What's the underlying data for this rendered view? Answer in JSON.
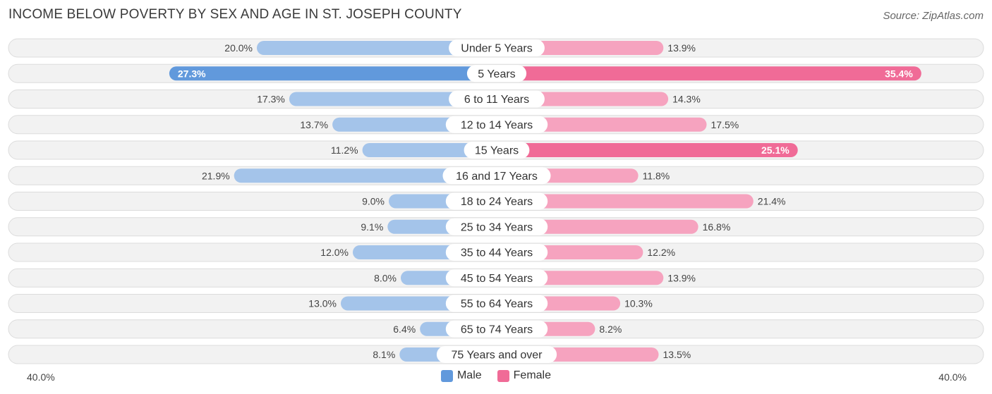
{
  "title": "INCOME BELOW POVERTY BY SEX AND AGE IN ST. JOSEPH COUNTY",
  "source": "Source: ZipAtlas.com",
  "colors": {
    "male_dark": "#6199dc",
    "male_light": "#a4c4ea",
    "female_dark": "#f06b97",
    "female_light": "#f6a3bf",
    "row_bg": "#f2f2f2",
    "row_border": "#dcdcdc"
  },
  "chart_data": {
    "type": "bar",
    "orientation": "horizontal-diverging",
    "title": "INCOME BELOW POVERTY BY SEX AND AGE IN ST. JOSEPH COUNTY",
    "categories": [
      "Under 5 Years",
      "5 Years",
      "6 to 11 Years",
      "12 to 14 Years",
      "15 Years",
      "16 and 17 Years",
      "18 to 24 Years",
      "25 to 34 Years",
      "35 to 44 Years",
      "45 to 54 Years",
      "55 to 64 Years",
      "65 to 74 Years",
      "75 Years and over"
    ],
    "series": [
      {
        "name": "Male",
        "values": [
          20.0,
          27.3,
          17.3,
          13.7,
          11.2,
          21.9,
          9.0,
          9.1,
          12.0,
          8.0,
          13.0,
          6.4,
          8.1
        ],
        "labels": [
          "20.0%",
          "27.3%",
          "17.3%",
          "13.7%",
          "11.2%",
          "21.9%",
          "9.0%",
          "9.1%",
          "12.0%",
          "8.0%",
          "13.0%",
          "6.4%",
          "8.1%"
        ]
      },
      {
        "name": "Female",
        "values": [
          13.9,
          35.4,
          14.3,
          17.5,
          25.1,
          11.8,
          21.4,
          16.8,
          12.2,
          13.9,
          10.3,
          8.2,
          13.5
        ],
        "labels": [
          "13.9%",
          "35.4%",
          "14.3%",
          "17.5%",
          "25.1%",
          "11.8%",
          "21.4%",
          "16.8%",
          "12.2%",
          "13.9%",
          "10.3%",
          "8.2%",
          "13.5%"
        ]
      }
    ],
    "xlim": [
      -40,
      40
    ],
    "axis_left_label": "40.0%",
    "axis_right_label": "40.0%",
    "highlight_threshold": 25,
    "legend": [
      "Male",
      "Female"
    ],
    "legend_position": "bottom-center"
  }
}
